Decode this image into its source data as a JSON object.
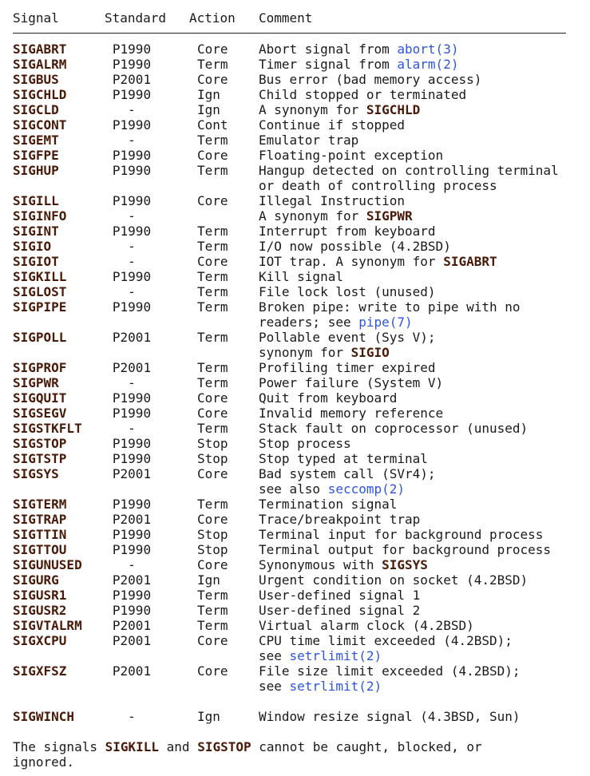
{
  "header": {
    "signal": "Signal",
    "standard": "Standard",
    "action": "Action",
    "comment": "Comment"
  },
  "colors": {
    "bold": "#4a1a08",
    "link": "#2d55e0",
    "text": "#1a1a1a"
  },
  "rows": [
    {
      "signal": "SIGABRT",
      "standard": "P1990",
      "action": "Core",
      "comment": [
        [
          {
            "text": "Abort signal from ",
            "kind": "plain"
          },
          {
            "text": "abort(3)",
            "kind": "link"
          }
        ]
      ]
    },
    {
      "signal": "SIGALRM",
      "standard": "P1990",
      "action": "Term",
      "comment": [
        [
          {
            "text": "Timer signal from ",
            "kind": "plain"
          },
          {
            "text": "alarm(2)",
            "kind": "link"
          }
        ]
      ]
    },
    {
      "signal": "SIGBUS",
      "standard": "P2001",
      "action": "Core",
      "comment": [
        [
          {
            "text": "Bus error (bad memory access)",
            "kind": "plain"
          }
        ]
      ]
    },
    {
      "signal": "SIGCHLD",
      "standard": "P1990",
      "action": "Ign",
      "comment": [
        [
          {
            "text": "Child stopped or terminated",
            "kind": "plain"
          }
        ]
      ]
    },
    {
      "signal": "SIGCLD",
      "standard": "-",
      "action": "Ign",
      "comment": [
        [
          {
            "text": "A synonym for ",
            "kind": "plain"
          },
          {
            "text": "SIGCHLD",
            "kind": "bold"
          }
        ]
      ]
    },
    {
      "signal": "SIGCONT",
      "standard": "P1990",
      "action": "Cont",
      "comment": [
        [
          {
            "text": "Continue if stopped",
            "kind": "plain"
          }
        ]
      ]
    },
    {
      "signal": "SIGEMT",
      "standard": "-",
      "action": "Term",
      "comment": [
        [
          {
            "text": "Emulator trap",
            "kind": "plain"
          }
        ]
      ]
    },
    {
      "signal": "SIGFPE",
      "standard": "P1990",
      "action": "Core",
      "comment": [
        [
          {
            "text": "Floating-point exception",
            "kind": "plain"
          }
        ]
      ]
    },
    {
      "signal": "SIGHUP",
      "standard": "P1990",
      "action": "Term",
      "comment": [
        [
          {
            "text": "Hangup detected on controlling terminal",
            "kind": "plain"
          }
        ],
        [
          {
            "text": "or death of controlling process",
            "kind": "plain"
          }
        ]
      ]
    },
    {
      "signal": "SIGILL",
      "standard": "P1990",
      "action": "Core",
      "comment": [
        [
          {
            "text": "Illegal Instruction",
            "kind": "plain"
          }
        ]
      ]
    },
    {
      "signal": "SIGINFO",
      "standard": "-",
      "action": "",
      "comment": [
        [
          {
            "text": "A synonym for ",
            "kind": "plain"
          },
          {
            "text": "SIGPWR",
            "kind": "bold"
          }
        ]
      ]
    },
    {
      "signal": "SIGINT",
      "standard": "P1990",
      "action": "Term",
      "comment": [
        [
          {
            "text": "Interrupt from keyboard",
            "kind": "plain"
          }
        ]
      ]
    },
    {
      "signal": "SIGIO",
      "standard": "-",
      "action": "Term",
      "comment": [
        [
          {
            "text": "I/O now possible (4.2BSD)",
            "kind": "plain"
          }
        ]
      ]
    },
    {
      "signal": "SIGIOT",
      "standard": "-",
      "action": "Core",
      "comment": [
        [
          {
            "text": "IOT trap. A synonym for ",
            "kind": "plain"
          },
          {
            "text": "SIGABRT",
            "kind": "bold"
          }
        ]
      ]
    },
    {
      "signal": "SIGKILL",
      "standard": "P1990",
      "action": "Term",
      "comment": [
        [
          {
            "text": "Kill signal",
            "kind": "plain"
          }
        ]
      ]
    },
    {
      "signal": "SIGLOST",
      "standard": "-",
      "action": "Term",
      "comment": [
        [
          {
            "text": "File lock lost (unused)",
            "kind": "plain"
          }
        ]
      ]
    },
    {
      "signal": "SIGPIPE",
      "standard": "P1990",
      "action": "Term",
      "comment": [
        [
          {
            "text": "Broken pipe: write to pipe with no",
            "kind": "plain"
          }
        ],
        [
          {
            "text": "readers; see ",
            "kind": "plain"
          },
          {
            "text": "pipe(7)",
            "kind": "link"
          }
        ]
      ]
    },
    {
      "signal": "SIGPOLL",
      "standard": "P2001",
      "action": "Term",
      "comment": [
        [
          {
            "text": "Pollable event (Sys V);",
            "kind": "plain"
          }
        ],
        [
          {
            "text": "synonym for ",
            "kind": "plain"
          },
          {
            "text": "SIGIO",
            "kind": "bold"
          }
        ]
      ]
    },
    {
      "signal": "SIGPROF",
      "standard": "P2001",
      "action": "Term",
      "comment": [
        [
          {
            "text": "Profiling timer expired",
            "kind": "plain"
          }
        ]
      ]
    },
    {
      "signal": "SIGPWR",
      "standard": "-",
      "action": "Term",
      "comment": [
        [
          {
            "text": "Power failure (System V)",
            "kind": "plain"
          }
        ]
      ]
    },
    {
      "signal": "SIGQUIT",
      "standard": "P1990",
      "action": "Core",
      "comment": [
        [
          {
            "text": "Quit from keyboard",
            "kind": "plain"
          }
        ]
      ]
    },
    {
      "signal": "SIGSEGV",
      "standard": "P1990",
      "action": "Core",
      "comment": [
        [
          {
            "text": "Invalid memory reference",
            "kind": "plain"
          }
        ]
      ]
    },
    {
      "signal": "SIGSTKFLT",
      "standard": "-",
      "action": "Term",
      "comment": [
        [
          {
            "text": "Stack fault on coprocessor (unused)",
            "kind": "plain"
          }
        ]
      ]
    },
    {
      "signal": "SIGSTOP",
      "standard": "P1990",
      "action": "Stop",
      "comment": [
        [
          {
            "text": "Stop process",
            "kind": "plain"
          }
        ]
      ]
    },
    {
      "signal": "SIGTSTP",
      "standard": "P1990",
      "action": "Stop",
      "comment": [
        [
          {
            "text": "Stop typed at terminal",
            "kind": "plain"
          }
        ]
      ]
    },
    {
      "signal": "SIGSYS",
      "standard": "P2001",
      "action": "Core",
      "comment": [
        [
          {
            "text": "Bad system call (SVr4);",
            "kind": "plain"
          }
        ],
        [
          {
            "text": "see also ",
            "kind": "plain"
          },
          {
            "text": "seccomp(2)",
            "kind": "link"
          }
        ]
      ]
    },
    {
      "signal": "SIGTERM",
      "standard": "P1990",
      "action": "Term",
      "comment": [
        [
          {
            "text": "Termination signal",
            "kind": "plain"
          }
        ]
      ]
    },
    {
      "signal": "SIGTRAP",
      "standard": "P2001",
      "action": "Core",
      "comment": [
        [
          {
            "text": "Trace/breakpoint trap",
            "kind": "plain"
          }
        ]
      ]
    },
    {
      "signal": "SIGTTIN",
      "standard": "P1990",
      "action": "Stop",
      "comment": [
        [
          {
            "text": "Terminal input for background process",
            "kind": "plain"
          }
        ]
      ]
    },
    {
      "signal": "SIGTTOU",
      "standard": "P1990",
      "action": "Stop",
      "comment": [
        [
          {
            "text": "Terminal output for background process",
            "kind": "plain"
          }
        ]
      ]
    },
    {
      "signal": "SIGUNUSED",
      "standard": "-",
      "action": "Core",
      "comment": [
        [
          {
            "text": "Synonymous with ",
            "kind": "plain"
          },
          {
            "text": "SIGSYS",
            "kind": "bold"
          }
        ]
      ]
    },
    {
      "signal": "SIGURG",
      "standard": "P2001",
      "action": "Ign",
      "comment": [
        [
          {
            "text": "Urgent condition on socket (4.2BSD)",
            "kind": "plain"
          }
        ]
      ]
    },
    {
      "signal": "SIGUSR1",
      "standard": "P1990",
      "action": "Term",
      "comment": [
        [
          {
            "text": "User-defined signal 1",
            "kind": "plain"
          }
        ]
      ]
    },
    {
      "signal": "SIGUSR2",
      "standard": "P1990",
      "action": "Term",
      "comment": [
        [
          {
            "text": "User-defined signal 2",
            "kind": "plain"
          }
        ]
      ]
    },
    {
      "signal": "SIGVTALRM",
      "standard": "P2001",
      "action": "Term",
      "comment": [
        [
          {
            "text": "Virtual alarm clock (4.2BSD)",
            "kind": "plain"
          }
        ]
      ]
    },
    {
      "signal": "SIGXCPU",
      "standard": "P2001",
      "action": "Core",
      "comment": [
        [
          {
            "text": "CPU time limit exceeded (4.2BSD);",
            "kind": "plain"
          }
        ],
        [
          {
            "text": "see ",
            "kind": "plain"
          },
          {
            "text": "setrlimit(2)",
            "kind": "link"
          }
        ]
      ]
    },
    {
      "signal": "SIGXFSZ",
      "standard": "P2001",
      "action": "Core",
      "comment": [
        [
          {
            "text": "File size limit exceeded (4.2BSD);",
            "kind": "plain"
          }
        ],
        [
          {
            "text": "see ",
            "kind": "plain"
          },
          {
            "text": "setrlimit(2)",
            "kind": "link"
          }
        ]
      ]
    },
    {
      "signal": "",
      "standard": "",
      "action": "",
      "comment": [
        [
          {
            "text": "",
            "kind": "plain"
          }
        ]
      ]
    },
    {
      "signal": "SIGWINCH",
      "standard": "-",
      "action": "Ign",
      "comment": [
        [
          {
            "text": "Window resize signal (4.3BSD, Sun)",
            "kind": "plain"
          }
        ]
      ]
    }
  ],
  "footer": {
    "part1": "The signals ",
    "bold1": "SIGKILL",
    "part2": " and ",
    "bold2": "SIGSTOP",
    "part3": " cannot be caught, blocked, or\nignored."
  }
}
